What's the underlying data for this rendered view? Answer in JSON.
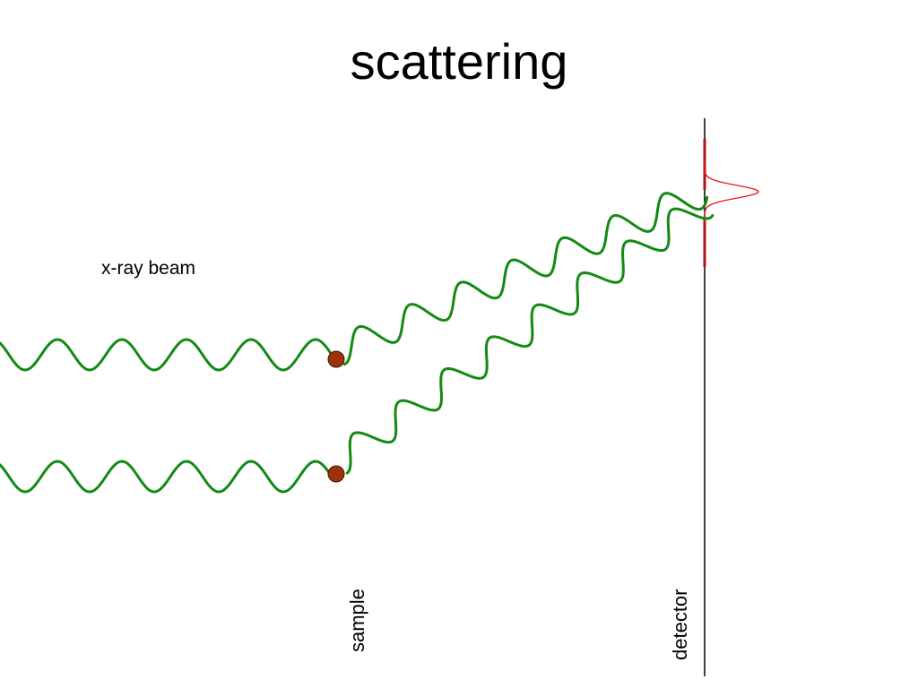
{
  "title": "scattering",
  "labels": {
    "beam": "x-ray beam",
    "sample": "sample",
    "detector": "detector"
  },
  "colors": {
    "wave": "#138a13",
    "atom": "#a0300a",
    "peak": "#e8161a",
    "detector_slit": "#b01212",
    "detector_line": "#000000"
  }
}
